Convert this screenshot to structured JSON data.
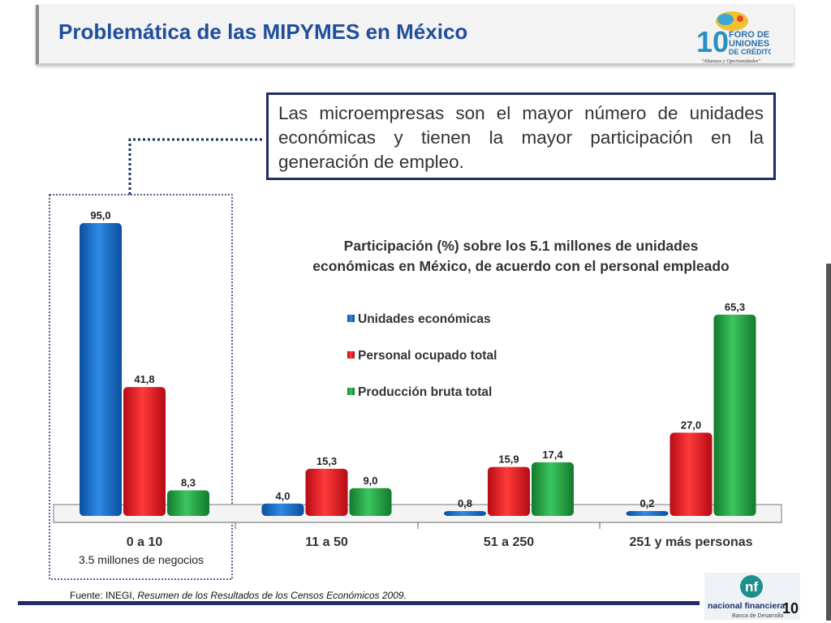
{
  "slide": {
    "title": "Problemática de las MIPYMES en México",
    "callout": "Las microempresas son el mayor número de unidades económicas y tienen la mayor participación en la generación de empleo.",
    "highlight_note": "3.5 millones de negocios",
    "source_prefix": "Fuente: INEGI, ",
    "source_italic": "Resumen de los Resultados de los Censos Económicos 2009.",
    "page_number": "10",
    "logo_foro": {
      "big": "10",
      "line1": "FORO DE",
      "line2": "UNIONES",
      "line3": "DE CRÉDITO",
      "tagline": "\"Alianzas y Oportunidades\""
    },
    "logo_nf": {
      "name": "nacional financiera",
      "sub": "Banca de Desarrollo"
    }
  },
  "colors": {
    "title": "#1f4e9c",
    "blue": "#0a62c2",
    "red": "#e5101b",
    "green": "#21a341",
    "navy": "#1f2f66"
  },
  "chart_data": {
    "type": "bar",
    "title_line1": "Participación (%) sobre los 5.1 millones de unidades",
    "title_line2": "económicas en México, de acuerdo con el personal empleado",
    "categories": [
      "0 a 10",
      "11 a 50",
      "51 a 250",
      "251 y más personas"
    ],
    "series": [
      {
        "name": "Unidades económicas",
        "values": [
          95.0,
          4.0,
          0.8,
          0.2
        ],
        "labels": [
          "95,0",
          "4,0",
          "0,8",
          "0,2"
        ]
      },
      {
        "name": "Personal ocupado total",
        "values": [
          41.8,
          15.3,
          15.9,
          27.0
        ],
        "labels": [
          "41,8",
          "15,3",
          "15,9",
          "27,0"
        ]
      },
      {
        "name": "Producción bruta total",
        "values": [
          8.3,
          9.0,
          17.4,
          65.3
        ],
        "labels": [
          "8,3",
          "9,0",
          "17,4",
          "65,3"
        ]
      }
    ],
    "ylim": [
      0,
      100
    ],
    "grid": false,
    "legend_position": "center-right"
  }
}
